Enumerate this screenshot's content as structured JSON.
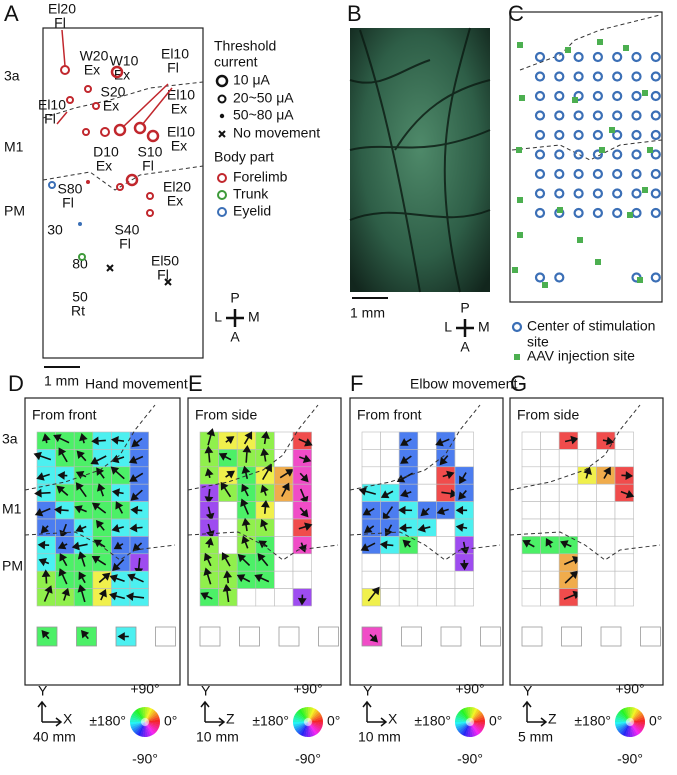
{
  "panel_a": {
    "letter": "A",
    "regions": [
      "3a",
      "M1",
      "PM"
    ],
    "sites": [
      {
        "name": "El20",
        "movement": "Fl"
      },
      {
        "name": "W20",
        "movement": "Ex"
      },
      {
        "name": "W10",
        "movement": "Ex"
      },
      {
        "name": "El10",
        "movement": "Fl"
      },
      {
        "name": "S20",
        "movement": "Ex"
      },
      {
        "name": "El10",
        "movement": "Fl"
      },
      {
        "name": "El10",
        "movement": "Ex"
      },
      {
        "name": "D10",
        "movement": "Ex"
      },
      {
        "name": "S10",
        "movement": "Fl"
      },
      {
        "name": "El10",
        "movement": "Ex"
      },
      {
        "name": "S80",
        "movement": "Fl"
      },
      {
        "name": "El20",
        "movement": "Ex"
      },
      {
        "name": "S40",
        "movement": "Fl"
      },
      {
        "name": "El50",
        "movement": "Fl"
      },
      {
        "name": "30"
      },
      {
        "name": "80"
      },
      {
        "name": "50",
        "movement": "Rt"
      }
    ],
    "threshold_legend": {
      "title": [
        "Threshold",
        "current"
      ],
      "items": [
        "10 μA",
        "20~50 μA",
        "50~80 μA",
        "No movement"
      ]
    },
    "body_part_legend": {
      "title": "Body part",
      "items": [
        "Forelimb",
        "Trunk",
        "Eyelid"
      ]
    },
    "scale_bar": "1 mm"
  },
  "compass": {
    "posterior": "P",
    "lateral": "L",
    "medial": "M",
    "anterior": "A"
  },
  "panel_b": {
    "letter": "B",
    "scale_bar": "1 mm"
  },
  "panel_c": {
    "letter": "C",
    "legend": [
      [
        "Center of stimulation",
        "site"
      ],
      [
        "AAV injection site"
      ]
    ]
  },
  "movement_panels": [
    {
      "letter": "D",
      "title": "Hand movement",
      "view": "From front",
      "axis_vertical": "Y",
      "axis_horizontal": "X",
      "scale": "40 mm"
    },
    {
      "letter": "E",
      "view": "From side",
      "axis_vertical": "Y",
      "axis_horizontal": "Z",
      "scale": "10 mm"
    },
    {
      "letter": "F",
      "title": "Elbow movement",
      "view": "From front",
      "axis_vertical": "Y",
      "axis_horizontal": "X",
      "scale": "10 mm"
    },
    {
      "letter": "G",
      "view": "From side",
      "axis_vertical": "Y",
      "axis_horizontal": "Z",
      "scale": "5 mm"
    }
  ],
  "wheel": {
    "top": "+90°",
    "left": "±180°",
    "right": "0°",
    "bottom": "-90°"
  }
}
